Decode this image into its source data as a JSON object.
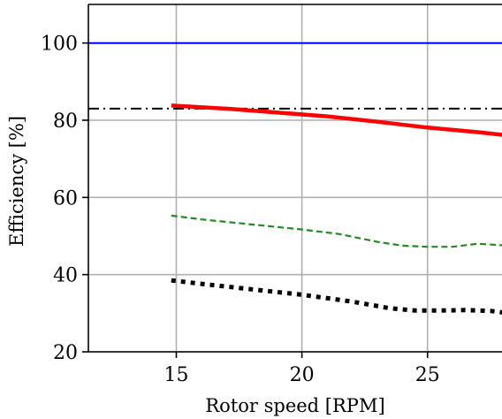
{
  "chart_data": {
    "type": "line",
    "xlabel": "Rotor speed [RPM]",
    "ylabel": "Efficiency [%]",
    "xlim": [
      11.5,
      28
    ],
    "ylim": [
      20,
      110
    ],
    "xticks": [
      15,
      20,
      25
    ],
    "yticks": [
      20,
      40,
      60,
      80,
      100
    ],
    "grid": true,
    "series": [
      {
        "style": "solid-thin",
        "color": "#0000ff",
        "x": [
          11.5,
          28
        ],
        "y": [
          100,
          100
        ]
      },
      {
        "style": "dash-dot",
        "color": "#000000",
        "x": [
          11.5,
          28
        ],
        "y": [
          83,
          83
        ]
      },
      {
        "style": "solid-thick",
        "color": "#ff0000",
        "x": [
          14.8,
          17,
          19,
          21,
          23,
          25,
          27,
          28
        ],
        "y": [
          83.8,
          83,
          82,
          81,
          79.6,
          78.1,
          76.9,
          76.2
        ]
      },
      {
        "style": "dashed",
        "color": "#228b22",
        "x": [
          14.8,
          16,
          18,
          20,
          21.5,
          23,
          24,
          25,
          26,
          27,
          28
        ],
        "y": [
          55.3,
          54.3,
          53,
          51.7,
          50.5,
          48.5,
          47.5,
          47.2,
          47.2,
          48,
          47.6
        ]
      },
      {
        "style": "dotted",
        "color": "#000000",
        "x": [
          14.8,
          16,
          18,
          20,
          22,
          23.5,
          24.5,
          25.5,
          26.5,
          27.5,
          28
        ],
        "y": [
          38.5,
          37.6,
          36.2,
          34.8,
          33,
          31.3,
          30.7,
          30.7,
          30.8,
          30.6,
          30.2
        ]
      }
    ]
  }
}
